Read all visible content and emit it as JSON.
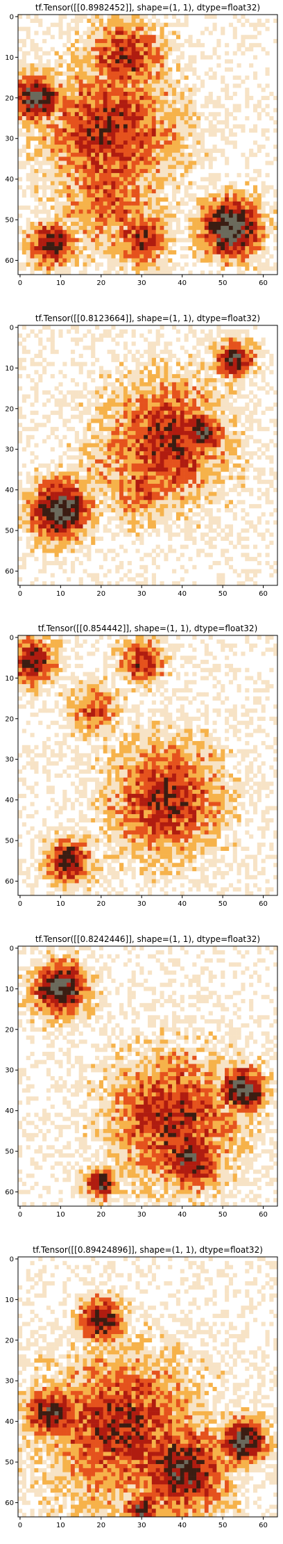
{
  "chart_data": [
    {
      "type": "heatmap",
      "title": "tf.Tensor([[0.8982452]], shape=(1, 1), dtype=float32)",
      "xlim": [
        0,
        63
      ],
      "ylim": [
        63,
        0
      ],
      "xticks": [
        0,
        10,
        20,
        30,
        40,
        50,
        60
      ],
      "yticks": [
        0,
        10,
        20,
        30,
        40,
        50,
        60
      ],
      "xtick_labels": [
        "0",
        "10",
        "20",
        "30",
        "40",
        "50",
        "60"
      ],
      "ytick_labels": [
        "0",
        "10",
        "20",
        "30",
        "40",
        "50",
        "60"
      ],
      "image_grid": [
        64,
        64
      ],
      "palette": [
        "#ffffff",
        "#f7e3c6",
        "#f6b24a",
        "#e5521d",
        "#b01c10",
        "#3b1d12",
        "#6b6a5c"
      ],
      "blobs": [
        {
          "x": 22,
          "y": 28,
          "r": 18,
          "level": 4
        },
        {
          "x": 26,
          "y": 10,
          "r": 10,
          "level": 4
        },
        {
          "x": 22,
          "y": 45,
          "r": 14,
          "level": 3
        },
        {
          "x": 8,
          "y": 56,
          "r": 6,
          "level": 5
        },
        {
          "x": 30,
          "y": 55,
          "r": 7,
          "level": 4
        },
        {
          "x": 52,
          "y": 52,
          "r": 8,
          "level": 6
        },
        {
          "x": 4,
          "y": 20,
          "r": 6,
          "level": 6
        }
      ]
    },
    {
      "type": "heatmap",
      "title": "tf.Tensor([[0.8123664]], shape=(1, 1), dtype=float32)",
      "xlim": [
        0,
        63
      ],
      "ylim": [
        63,
        0
      ],
      "xticks": [
        0,
        10,
        20,
        30,
        40,
        50,
        60
      ],
      "yticks": [
        0,
        10,
        20,
        30,
        40,
        50,
        60
      ],
      "xtick_labels": [
        "0",
        "10",
        "20",
        "30",
        "40",
        "50",
        "60"
      ],
      "ytick_labels": [
        "0",
        "10",
        "20",
        "30",
        "40",
        "50",
        "60"
      ],
      "image_grid": [
        64,
        64
      ],
      "palette": [
        "#ffffff",
        "#f7e3c6",
        "#f6b24a",
        "#e5521d",
        "#b01c10",
        "#3b1d12",
        "#6b6a5c"
      ],
      "blobs": [
        {
          "x": 36,
          "y": 28,
          "r": 16,
          "level": 4
        },
        {
          "x": 45,
          "y": 26,
          "r": 6,
          "level": 5
        },
        {
          "x": 30,
          "y": 40,
          "r": 9,
          "level": 3
        },
        {
          "x": 53,
          "y": 8,
          "r": 5,
          "level": 5
        },
        {
          "x": 10,
          "y": 45,
          "r": 8,
          "level": 6
        },
        {
          "x": 22,
          "y": 35,
          "r": 10,
          "level": 2
        }
      ]
    },
    {
      "type": "heatmap",
      "title": "tf.Tensor([[0.854442]], shape=(1, 1), dtype=float32)",
      "xlim": [
        0,
        63
      ],
      "ylim": [
        63,
        0
      ],
      "xticks": [
        0,
        10,
        20,
        30,
        40,
        50,
        60
      ],
      "yticks": [
        0,
        10,
        20,
        30,
        40,
        50,
        60
      ],
      "xtick_labels": [
        "0",
        "10",
        "20",
        "30",
        "40",
        "50",
        "60"
      ],
      "ytick_labels": [
        "0",
        "10",
        "20",
        "30",
        "40",
        "50",
        "60"
      ],
      "image_grid": [
        64,
        64
      ],
      "palette": [
        "#ffffff",
        "#f7e3c6",
        "#f6b24a",
        "#e5521d",
        "#b01c10",
        "#3b1d12",
        "#6b6a5c"
      ],
      "blobs": [
        {
          "x": 36,
          "y": 40,
          "r": 15,
          "level": 4
        },
        {
          "x": 3,
          "y": 6,
          "r": 6,
          "level": 5
        },
        {
          "x": 30,
          "y": 6,
          "r": 6,
          "level": 4
        },
        {
          "x": 18,
          "y": 18,
          "r": 7,
          "level": 3
        },
        {
          "x": 12,
          "y": 55,
          "r": 6,
          "level": 5
        },
        {
          "x": 45,
          "y": 30,
          "r": 7,
          "level": 2
        }
      ]
    },
    {
      "type": "heatmap",
      "title": "tf.Tensor([[0.8242446]], shape=(1, 1), dtype=float32)",
      "xlim": [
        0,
        63
      ],
      "ylim": [
        63,
        0
      ],
      "xticks": [
        0,
        10,
        20,
        30,
        40,
        50,
        60
      ],
      "yticks": [
        0,
        10,
        20,
        30,
        40,
        50,
        60
      ],
      "xtick_labels": [
        "0",
        "10",
        "20",
        "30",
        "40",
        "50",
        "60"
      ],
      "ytick_labels": [
        "0",
        "10",
        "20",
        "30",
        "40",
        "50",
        "60"
      ],
      "image_grid": [
        64,
        64
      ],
      "palette": [
        "#ffffff",
        "#f7e3c6",
        "#f6b24a",
        "#e5521d",
        "#b01c10",
        "#3b1d12",
        "#6b6a5c"
      ],
      "blobs": [
        {
          "x": 38,
          "y": 42,
          "r": 17,
          "level": 4
        },
        {
          "x": 42,
          "y": 52,
          "r": 8,
          "level": 5
        },
        {
          "x": 10,
          "y": 10,
          "r": 7,
          "level": 6
        },
        {
          "x": 20,
          "y": 58,
          "r": 4,
          "level": 5
        },
        {
          "x": 55,
          "y": 35,
          "r": 6,
          "level": 6
        }
      ]
    },
    {
      "type": "heatmap",
      "title": "tf.Tensor([[0.89424896]], shape=(1, 1), dtype=float32)",
      "xlim": [
        0,
        63
      ],
      "ylim": [
        63,
        0
      ],
      "xticks": [
        0,
        10,
        20,
        30,
        40,
        50,
        60
      ],
      "yticks": [
        0,
        10,
        20,
        30,
        40,
        50,
        60
      ],
      "xtick_labels": [
        "0",
        "10",
        "20",
        "30",
        "40",
        "50",
        "60"
      ],
      "ytick_labels": [
        "0",
        "10",
        "20",
        "30",
        "40",
        "50",
        "60"
      ],
      "image_grid": [
        64,
        64
      ],
      "palette": [
        "#ffffff",
        "#f7e3c6",
        "#f6b24a",
        "#e5521d",
        "#b01c10",
        "#3b1d12",
        "#6b6a5c"
      ],
      "blobs": [
        {
          "x": 25,
          "y": 42,
          "r": 20,
          "level": 4
        },
        {
          "x": 40,
          "y": 52,
          "r": 12,
          "level": 5
        },
        {
          "x": 8,
          "y": 38,
          "r": 7,
          "level": 5
        },
        {
          "x": 20,
          "y": 15,
          "r": 6,
          "level": 5
        },
        {
          "x": 30,
          "y": 62,
          "r": 5,
          "level": 5
        },
        {
          "x": 55,
          "y": 45,
          "r": 6,
          "level": 6
        }
      ]
    }
  ]
}
